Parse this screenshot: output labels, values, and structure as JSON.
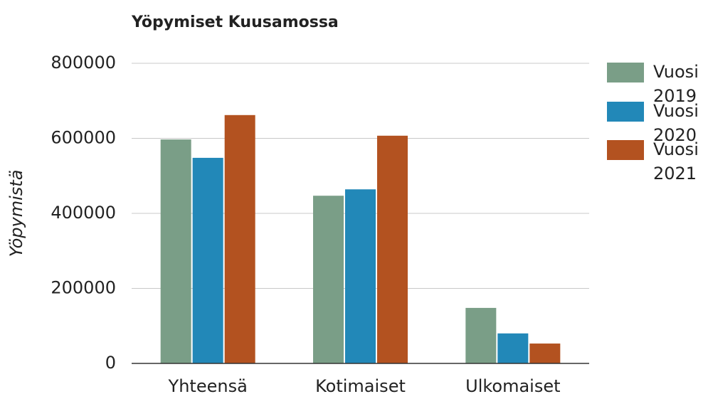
{
  "chart_data": {
    "type": "bar",
    "title": "Yöpymiset Kuusamossa",
    "y_label": "Yöpymistä",
    "categories": [
      "Yhteensä",
      "Kotimaiset",
      "Ulkomaiset"
    ],
    "series": [
      {
        "name": "Vuosi 2019",
        "color": "#7a9e87",
        "values": [
          597000,
          447000,
          148000
        ]
      },
      {
        "name": "Vuosi 2020",
        "color": "#2288b8",
        "values": [
          548000,
          464000,
          80000
        ]
      },
      {
        "name": "Vuosi 2021",
        "color": "#b35220",
        "values": [
          662000,
          607000,
          53000
        ]
      }
    ],
    "ylim": [
      0,
      800000
    ],
    "yticks": [
      0,
      200000,
      400000,
      600000,
      800000
    ],
    "grid": true,
    "legend": "right"
  }
}
